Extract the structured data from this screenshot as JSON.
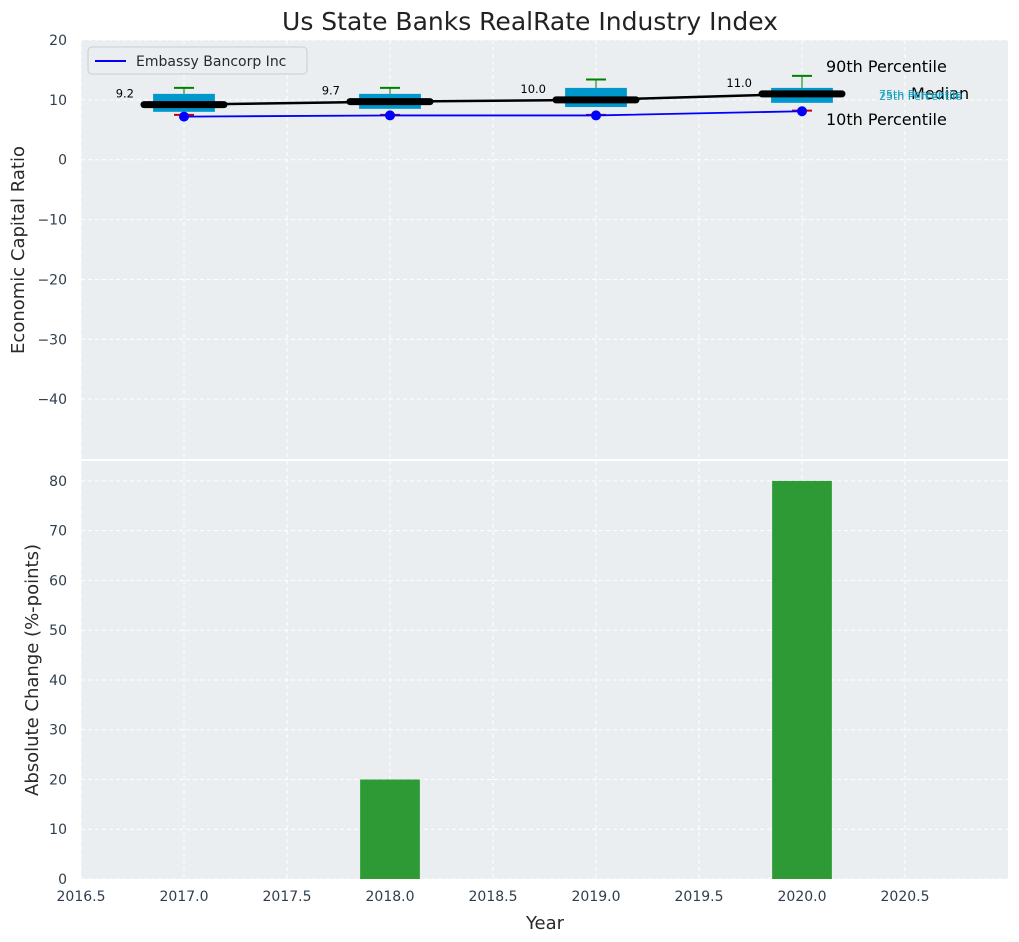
{
  "chart_data": [
    {
      "type": "box",
      "panel": "top",
      "title": "Us State Banks RealRate Industry Index",
      "xlabel": "",
      "ylabel": "Economic Capital Ratio",
      "ylim": [
        -50,
        20
      ],
      "yticks": [
        20,
        10,
        0,
        -10,
        -20,
        -30,
        -40
      ],
      "xlim": [
        2016.5,
        2021.0
      ],
      "grid": true,
      "legend": {
        "location": "top-left",
        "entries": [
          "Embassy Bancorp Inc"
        ]
      },
      "years": [
        2017,
        2018,
        2019,
        2020
      ],
      "percentile_90": [
        12.0,
        12.0,
        13.4,
        14.0
      ],
      "percentile_75": [
        11.0,
        11.0,
        12.0,
        12.0
      ],
      "median": [
        9.2,
        9.7,
        10.0,
        11.0
      ],
      "percentile_25": [
        8.0,
        8.5,
        8.8,
        9.5
      ],
      "percentile_10": [
        7.5,
        7.5,
        7.5,
        8.2
      ],
      "median_labels": [
        "9.2",
        "9.7",
        "10.0",
        "11.0"
      ],
      "series": [
        {
          "name": "Embassy Bancorp Inc",
          "color": "#0000ff",
          "values": [
            7.2,
            7.4,
            7.4,
            8.1
          ]
        }
      ],
      "annotations": {
        "p90": "90th Percentile",
        "median": "Median",
        "p10": "10th Percentile",
        "p75": "75th Percentile",
        "p25": "25th Percentile"
      },
      "colors": {
        "box": "#0098cc",
        "whisker": "#008000",
        "p10_tick": "#cc0000",
        "median_line": "#000000",
        "quartile_text": "#17a2c0"
      }
    },
    {
      "type": "bar",
      "panel": "bottom",
      "xlabel": "Year",
      "ylabel": "Absolute Change (%-points)",
      "ylim": [
        0,
        84
      ],
      "yticks": [
        0,
        10,
        20,
        30,
        40,
        50,
        60,
        70,
        80
      ],
      "xlim": [
        2016.5,
        2021.0
      ],
      "xticks": [
        2016.5,
        2017.0,
        2017.5,
        2018.0,
        2018.5,
        2019.0,
        2019.5,
        2020.0,
        2020.5
      ],
      "xtick_labels": [
        "2016.5",
        "2017.0",
        "2017.5",
        "2018.0",
        "2018.5",
        "2019.0",
        "2019.5",
        "2020.0",
        "2020.5"
      ],
      "years": [
        2017,
        2018,
        2019,
        2020
      ],
      "values": [
        0,
        20,
        0,
        80
      ],
      "color": "#2e9a36",
      "grid": true
    }
  ]
}
